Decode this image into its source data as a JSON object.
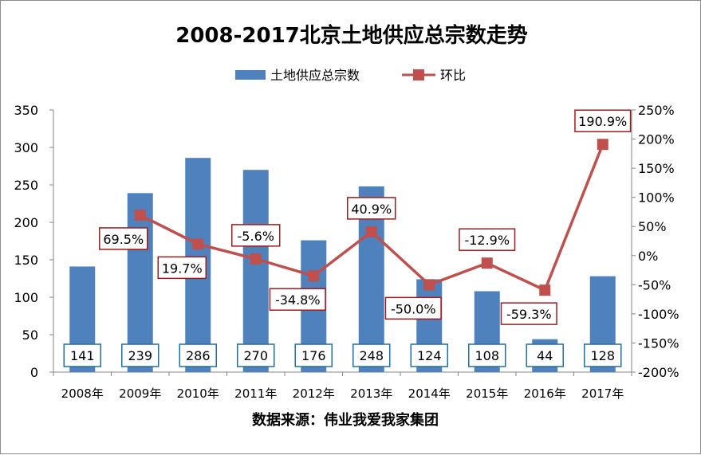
{
  "chart_data": {
    "type": "bar",
    "title": "2008-2017北京土地供应总宗数走势",
    "categories": [
      "2008年",
      "2009年",
      "2010年",
      "2011年",
      "2012年",
      "2013年",
      "2014年",
      "2015年",
      "2016年",
      "2017年"
    ],
    "series": [
      {
        "name": "土地供应总宗数",
        "type": "bar",
        "axis": "left",
        "color": "#4f81bd",
        "values": [
          141,
          239,
          286,
          270,
          176,
          248,
          124,
          108,
          44,
          128
        ],
        "data_labels": [
          "141",
          "239",
          "286",
          "270",
          "176",
          "248",
          "124",
          "108",
          "44",
          "128"
        ],
        "label_border_color": "#1f6fa8"
      },
      {
        "name": "环比",
        "type": "line",
        "axis": "right",
        "color": "#c0504d",
        "values": [
          null,
          69.5,
          19.7,
          -5.6,
          -34.8,
          40.9,
          -50.0,
          -12.9,
          -59.3,
          190.9
        ],
        "data_labels": [
          "",
          "69.5%",
          "19.7%",
          "-5.6%",
          "-34.8%",
          "40.9%",
          "-50.0%",
          "-12.9%",
          "-59.3%",
          "190.9%"
        ],
        "label_border_color": "#a01c1c",
        "label_placement": [
          "",
          "below",
          "below",
          "above",
          "below",
          "above",
          "below",
          "above",
          "below",
          "above"
        ]
      }
    ],
    "y_left": {
      "ylim": [
        0,
        350
      ],
      "ticks": [
        "0",
        "50",
        "100",
        "150",
        "200",
        "250",
        "300",
        "350"
      ]
    },
    "y_right": {
      "ylim": [
        -200,
        250
      ],
      "ticks": [
        "-200%",
        "-150%",
        "-100%",
        "-50%",
        "0%",
        "50%",
        "100%",
        "150%",
        "200%",
        "250%"
      ]
    },
    "legend_placement": "top",
    "grid": false,
    "source": "数据来源：伟业我爱我家集团"
  }
}
